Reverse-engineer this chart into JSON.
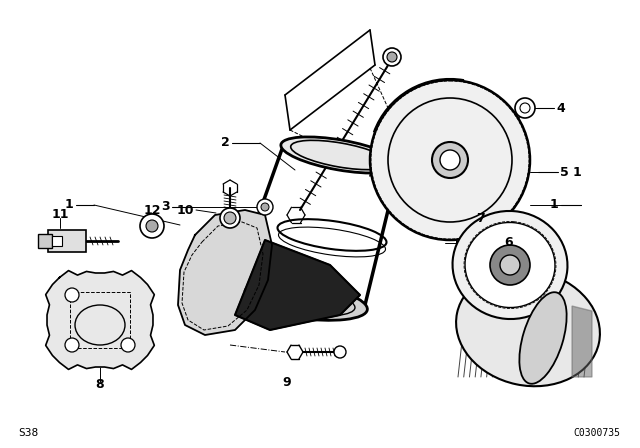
{
  "background_color": "#ffffff",
  "fig_width": 6.4,
  "fig_height": 4.48,
  "dpi": 100,
  "bottom_left_text": "S38",
  "bottom_right_text": "C0300735"
}
